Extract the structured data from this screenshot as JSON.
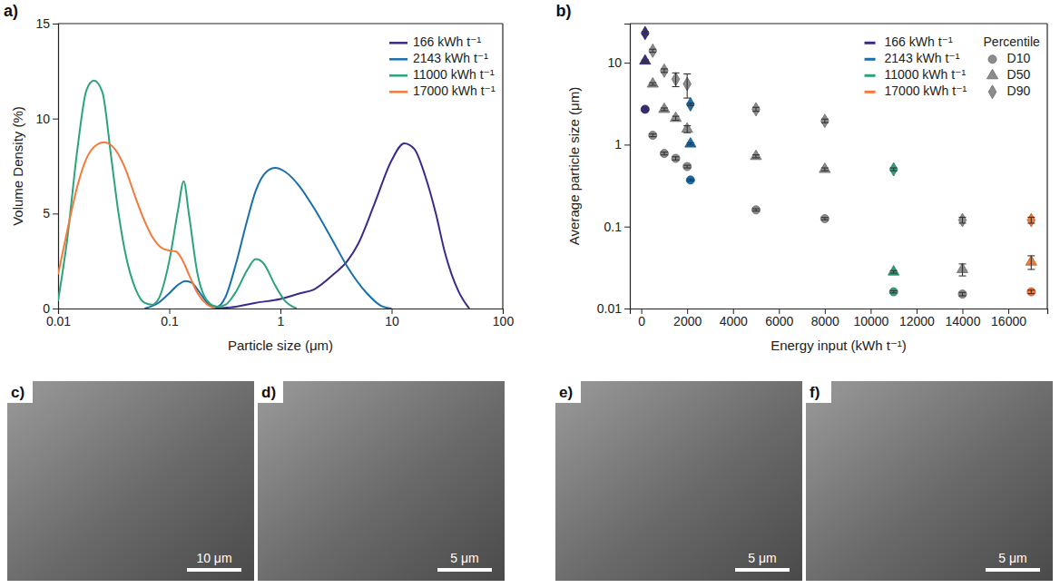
{
  "chart_data": [
    {
      "type": "line",
      "label": "a)",
      "xlabel": "Particle size (μm)",
      "ylabel": "Volume Density (%)",
      "log": "x",
      "xlim": [
        0.01,
        100
      ],
      "xticks": [
        0.01,
        0.1,
        1,
        10,
        100
      ],
      "ylim": [
        0,
        15
      ],
      "yticks": [
        0,
        5,
        10,
        15
      ],
      "grid": false,
      "legend": "upper right",
      "series": [
        {
          "name": "166 kWh t⁻¹",
          "color": "#3b2a8c",
          "x": [
            0.25,
            0.4,
            0.6,
            1,
            1.5,
            2,
            3,
            4,
            5,
            7,
            10,
            13,
            16,
            20,
            25,
            30,
            40,
            50
          ],
          "values": [
            0,
            0.1,
            0.3,
            0.5,
            0.8,
            1.0,
            1.8,
            2.5,
            3.4,
            5.5,
            7.8,
            8.7,
            8.4,
            7.0,
            5.0,
            3.0,
            0.9,
            0
          ]
        },
        {
          "name": "2143 kWh t⁻¹",
          "color": "#1a6fad",
          "x": [
            0.06,
            0.08,
            0.1,
            0.12,
            0.14,
            0.16,
            0.19,
            0.23,
            0.27,
            0.32,
            0.4,
            0.5,
            0.6,
            0.75,
            0.9,
            1.1,
            1.5,
            2,
            3,
            4,
            6,
            8,
            10
          ],
          "values": [
            0,
            0.3,
            0.8,
            1.25,
            1.45,
            1.35,
            0.8,
            0.2,
            0.1,
            0.6,
            2.4,
            4.6,
            6.2,
            7.2,
            7.4,
            7.2,
            6.4,
            5.3,
            3.5,
            2.2,
            0.8,
            0.15,
            0
          ]
        },
        {
          "name": "11000 kWh t⁻¹",
          "color": "#2ca37a",
          "x": [
            0.01,
            0.012,
            0.015,
            0.018,
            0.021,
            0.025,
            0.03,
            0.035,
            0.04,
            0.05,
            0.06,
            0.07,
            0.08,
            0.1,
            0.12,
            0.135,
            0.15,
            0.18,
            0.22,
            0.27,
            0.32,
            0.4,
            0.5,
            0.6,
            0.7,
            0.9,
            1.1,
            1.4
          ],
          "values": [
            0.4,
            3.5,
            8.5,
            11.5,
            12,
            11.4,
            8,
            5,
            3,
            1,
            0.3,
            0.2,
            0.5,
            2.5,
            5.2,
            6.7,
            5,
            1.8,
            0.4,
            0.1,
            0.2,
            0.9,
            2.0,
            2.6,
            2.4,
            1.2,
            0.4,
            0
          ]
        },
        {
          "name": "17000 kWh t⁻¹",
          "color": "#f4793b",
          "x": [
            0.01,
            0.012,
            0.015,
            0.018,
            0.022,
            0.026,
            0.03,
            0.035,
            0.04,
            0.05,
            0.06,
            0.07,
            0.085,
            0.1,
            0.115,
            0.13,
            0.15,
            0.18,
            0.22,
            0.26
          ],
          "values": [
            1.8,
            4,
            6.5,
            7.9,
            8.6,
            8.75,
            8.6,
            8.1,
            7.4,
            5.8,
            4.6,
            3.8,
            3.2,
            3.05,
            3.0,
            2.6,
            1.8,
            0.8,
            0.2,
            0
          ]
        }
      ]
    },
    {
      "type": "scatter",
      "label": "b)",
      "xlabel": "Energy input (kWh t⁻¹)",
      "ylabel": "Average particle size (μm)",
      "log": "y",
      "xlim": [
        -500,
        17700
      ],
      "xticks": [
        0,
        2000,
        4000,
        6000,
        8000,
        10000,
        12000,
        14000,
        16000
      ],
      "ylim": [
        0.01,
        30
      ],
      "yticks": [
        0.01,
        0.1,
        1,
        10
      ],
      "grid": false,
      "legend": "upper right",
      "legend_title": "Percentile",
      "color_key": [
        {
          "name": "166 kWh t⁻¹",
          "color": "#3b2a8c"
        },
        {
          "name": "2143 kWh t⁻¹",
          "color": "#1a6fad"
        },
        {
          "name": "11000 kWh t⁻¹",
          "color": "#2ca37a"
        },
        {
          "name": "17000 kWh t⁻¹",
          "color": "#f4793b"
        }
      ],
      "x": [
        166,
        500,
        1000,
        1500,
        2000,
        2143,
        5000,
        8000,
        11000,
        14000,
        17000
      ],
      "series": [
        {
          "name": "D10",
          "marker": "circle",
          "color": "#8c8c8c",
          "colors": [
            "#3b2a8c",
            "#8c8c8c",
            "#8c8c8c",
            "#8c8c8c",
            "#8c8c8c",
            "#1a6fad",
            "#8c8c8c",
            "#8c8c8c",
            "#2ca37a",
            "#8c8c8c",
            "#f4793b"
          ],
          "values": [
            2.7,
            1.3,
            0.78,
            0.68,
            0.54,
            0.37,
            0.16,
            0.125,
            0.016,
            0.015,
            0.016
          ],
          "errors": [
            0.1,
            0.05,
            0.03,
            0.03,
            0.02,
            0.01,
            0.005,
            0.004,
            0.0005,
            0.0007,
            0.0008
          ]
        },
        {
          "name": "D50",
          "marker": "triangle",
          "color": "#8c8c8c",
          "colors": [
            "#3b2a8c",
            "#8c8c8c",
            "#8c8c8c",
            "#8c8c8c",
            "#8c8c8c",
            "#1a6fad",
            "#8c8c8c",
            "#8c8c8c",
            "#2ca37a",
            "#8c8c8c",
            "#f4793b"
          ],
          "values": [
            10.5,
            5.5,
            2.7,
            2.1,
            1.55,
            1.02,
            0.72,
            0.5,
            0.028,
            0.03,
            0.037
          ],
          "errors": [
            0.3,
            0.2,
            0.1,
            0.12,
            0.15,
            0.03,
            0.03,
            0.02,
            0.001,
            0.005,
            0.007
          ]
        },
        {
          "name": "D90",
          "marker": "diamond",
          "color": "#8c8c8c",
          "colors": [
            "#3b2a8c",
            "#8c8c8c",
            "#8c8c8c",
            "#8c8c8c",
            "#8c8c8c",
            "#1a6fad",
            "#8c8c8c",
            "#8c8c8c",
            "#2ca37a",
            "#8c8c8c",
            "#f4793b"
          ],
          "values": [
            23,
            14,
            8,
            6.3,
            5.5,
            3.1,
            2.7,
            1.95,
            0.5,
            0.12,
            0.12
          ],
          "errors": [
            1.0,
            0.6,
            0.4,
            1.2,
            1.8,
            0.1,
            0.15,
            0.1,
            0.02,
            0.01,
            0.01
          ]
        }
      ]
    }
  ],
  "images": [
    {
      "label": "c)",
      "scale_bar": "10 μm"
    },
    {
      "label": "d)",
      "scale_bar": "5 μm"
    },
    {
      "label": "e)",
      "scale_bar": "5 μm"
    },
    {
      "label": "f)",
      "scale_bar": "5 μm"
    }
  ]
}
